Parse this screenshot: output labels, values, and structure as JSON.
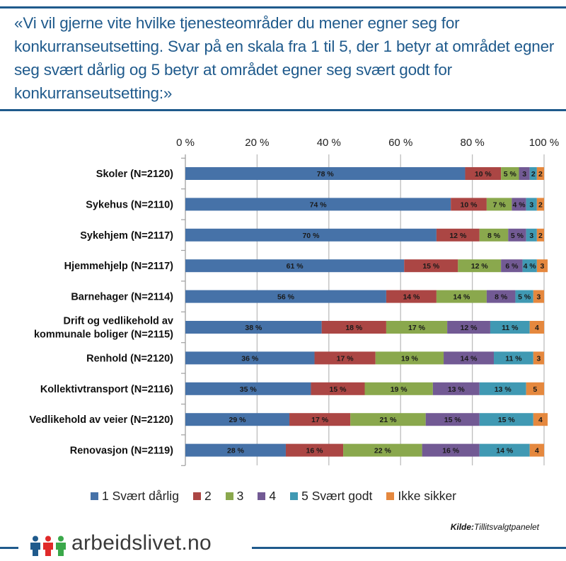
{
  "header": {
    "title": "«Vi vil gjerne vite hvilke tjenesteområder du mener egner seg for konkurranseutsetting. Svar på en skala fra 1 til 5, der 1 betyr at området egner seg svært dårlig og 5 betyr at området egner seg svært godt for konkurranseutsetting:»"
  },
  "chart_data": {
    "type": "bar",
    "orientation": "horizontal",
    "stacked": true,
    "percent_stacked": true,
    "title": "«Vi vil gjerne vite hvilke tjenesteområder du mener egner seg for konkurranseutsetting. Svar på en skala fra 1 til 5, der 1 betyr at området egner seg svært dårlig og 5 betyr at området egner seg svært godt for konkurranseutsetting:»",
    "xlabel": "",
    "ylabel": "",
    "xlim": [
      0,
      100
    ],
    "x_ticks": [
      "0 %",
      "20 %",
      "40 %",
      "60 %",
      "80 %",
      "100 %"
    ],
    "x_tick_values": [
      0,
      20,
      40,
      60,
      80,
      100
    ],
    "x_axis_position": "top",
    "grid": true,
    "legend_position": "bottom",
    "categories": [
      [
        "Skoler (N=2120)"
      ],
      [
        "Sykehus (N=2110)"
      ],
      [
        "Sykehjem (N=2117)"
      ],
      [
        "Hjemmehjelp (N=2117)"
      ],
      [
        "Barnehager (N=2114)"
      ],
      [
        "Drift og vedlikehold av",
        "kommunale boliger (N=2115)"
      ],
      [
        "Renhold (N=2120)"
      ],
      [
        "Kollektivtransport (N=2116)"
      ],
      [
        "Vedlikehold av veier (N=2120)"
      ],
      [
        "Renovasjon (N=2119)"
      ]
    ],
    "series": [
      {
        "name": "1 Svært dårlig",
        "color": "#4672a8",
        "values": [
          78,
          74,
          70,
          61,
          56,
          38,
          36,
          35,
          29,
          28
        ],
        "labels": [
          "78 %",
          "74 %",
          "70 %",
          "61 %",
          "56 %",
          "38 %",
          "36 %",
          "35 %",
          "29 %",
          "28 %"
        ]
      },
      {
        "name": "2",
        "color": "#ab4644",
        "values": [
          10,
          10,
          12,
          15,
          14,
          18,
          17,
          15,
          17,
          16
        ],
        "labels": [
          "10 %",
          "10 %",
          "12 %",
          "15 %",
          "14 %",
          "18 %",
          "17 %",
          "15 %",
          "17 %",
          "16 %"
        ]
      },
      {
        "name": "3",
        "color": "#8aa84d",
        "values": [
          5,
          7,
          8,
          12,
          14,
          17,
          19,
          19,
          21,
          22
        ],
        "labels": [
          "5 %",
          "7 %",
          "8 %",
          "12 %",
          "14 %",
          "17 %",
          "19 %",
          "19 %",
          "21 %",
          "22 %"
        ]
      },
      {
        "name": "4",
        "color": "#725a94",
        "values": [
          3,
          4,
          5,
          6,
          8,
          12,
          14,
          13,
          15,
          16
        ],
        "labels": [
          "3",
          "4 %",
          "5 %",
          "6 %",
          "8 %",
          "12 %",
          "14 %",
          "13 %",
          "15 %",
          "16 %"
        ]
      },
      {
        "name": "5 Svært godt",
        "color": "#4099b3",
        "values": [
          2,
          3,
          3,
          4,
          5,
          11,
          11,
          13,
          15,
          14
        ],
        "labels": [
          "2",
          "3",
          "3",
          "4 %",
          "5 %",
          "11 %",
          "11 %",
          "13 %",
          "15 %",
          "14 %"
        ]
      },
      {
        "name": "Ikke sikker",
        "color": "#e5883e",
        "values": [
          2,
          2,
          2,
          3,
          3,
          4,
          3,
          5,
          4,
          4
        ],
        "labels": [
          "2",
          "2",
          "2",
          "3",
          "3",
          "4",
          "3",
          "5",
          "4",
          "4"
        ]
      }
    ],
    "source": {
      "label": "Kilde:",
      "value": "Tillitsvalgtpanelet"
    }
  },
  "legend": {
    "items": [
      {
        "label": "1 Svært dårlig",
        "color": "#4672a8"
      },
      {
        "label": "2",
        "color": "#ab4644"
      },
      {
        "label": "3",
        "color": "#8aa84d"
      },
      {
        "label": "4",
        "color": "#725a94"
      },
      {
        "label": "5 Svært godt",
        "color": "#4099b3"
      },
      {
        "label": "Ikke sikker",
        "color": "#e5883e"
      }
    ]
  },
  "source": {
    "label": "Kilde:",
    "value": "Tillitsvalgtpanelet"
  },
  "footer": {
    "brand": "arbeidslivet.no",
    "logo_icon": "people-icon",
    "logo_colors": [
      "#1f5a8c",
      "#e02a2a",
      "#3aa84a"
    ]
  },
  "colors": {
    "accent": "#1f5a8c",
    "grid": "#b8b8b8"
  }
}
